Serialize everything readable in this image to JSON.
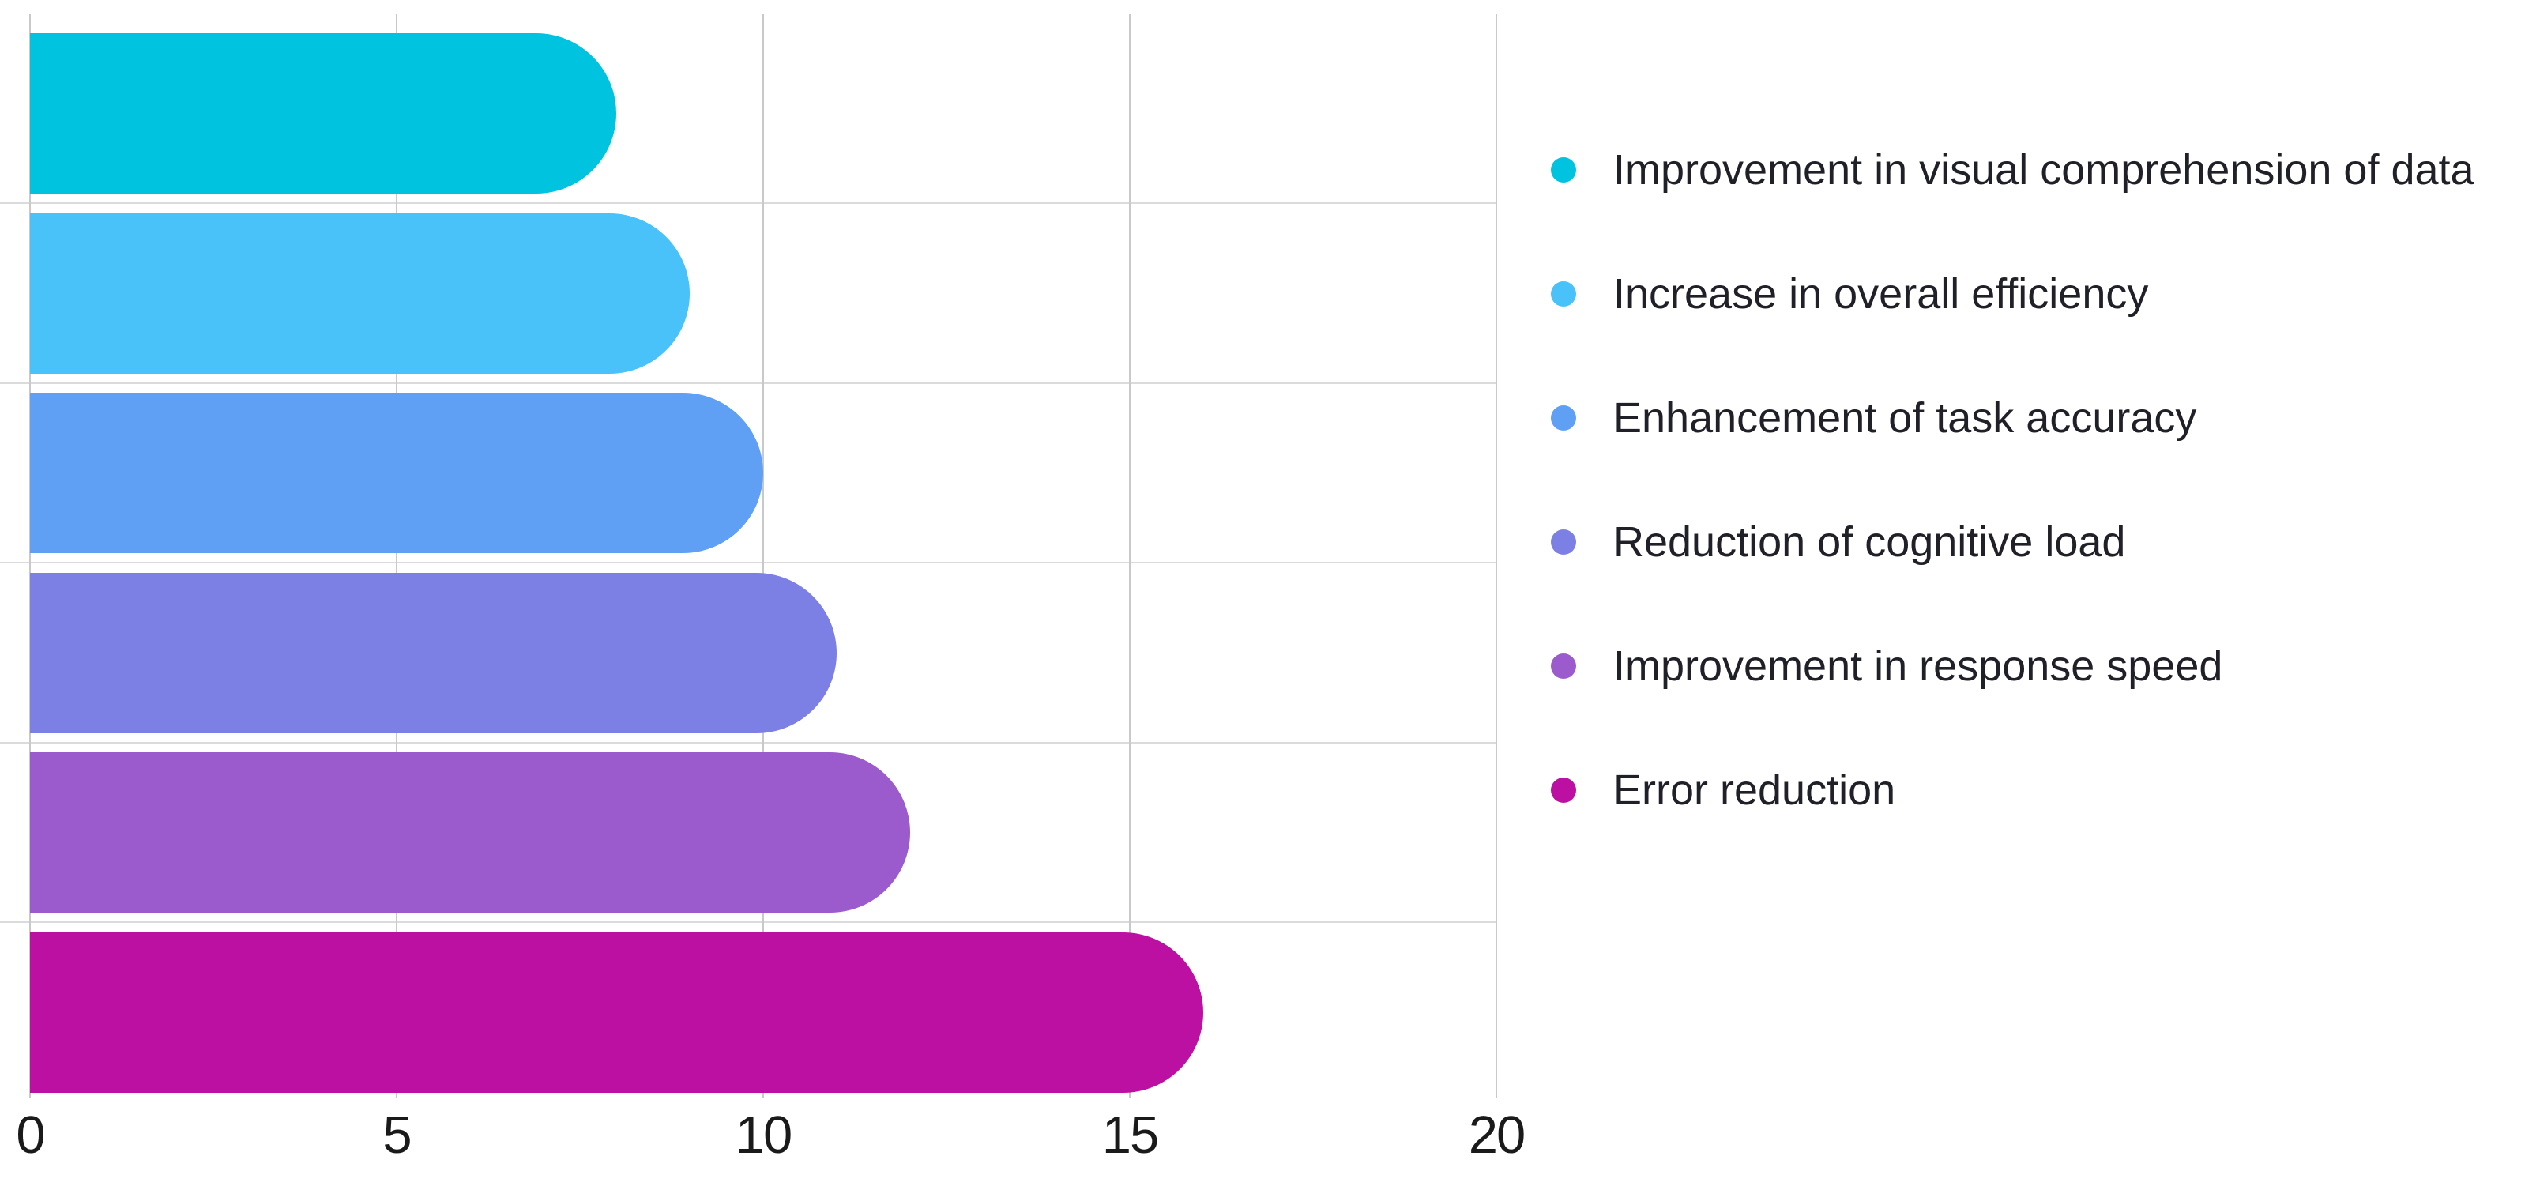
{
  "chart_data": {
    "type": "bar",
    "orientation": "horizontal",
    "title": "",
    "xlabel": "",
    "ylabel": "",
    "categories": [
      "Improvement in visual comprehension of data",
      "Increase in overall efficiency",
      "Enhancement of task accuracy",
      "Reduction of cognitive load",
      "Improvement in response speed",
      "Error reduction"
    ],
    "values": [
      8,
      9,
      10,
      11,
      12,
      16
    ],
    "bar_colors": [
      "#00C3DF",
      "#48C2F9",
      "#5FA0F4",
      "#7C80E4",
      "#9C5BCC",
      "#BB10A1"
    ],
    "xlim": [
      0,
      20
    ],
    "x_ticks": [
      0,
      5,
      10,
      15,
      20
    ],
    "grid": true,
    "legend_position": "right"
  },
  "colors": {
    "background": "#FFFFFF",
    "grid_vertical": "#C9C9C9",
    "grid_horizontal": "#DBDBDB",
    "axis_text": "#1A1A1A",
    "legend_text": "#202028"
  }
}
